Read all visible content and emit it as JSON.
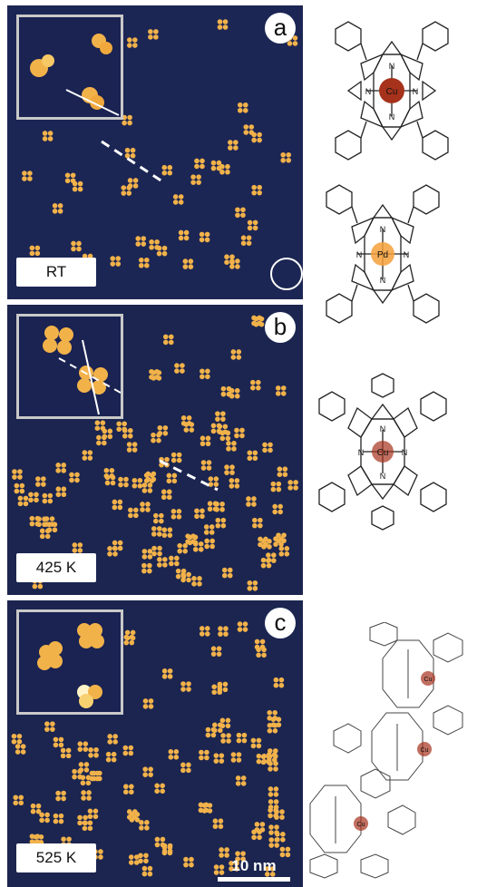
{
  "panels": [
    {
      "letter": "a",
      "temperature": "RT"
    },
    {
      "letter": "b",
      "temperature": "425 K"
    },
    {
      "letter": "c",
      "temperature": "525 K"
    }
  ],
  "scale_bar": "10 nm",
  "molecules": [
    {
      "center_atom": "Cu",
      "ring_atoms": [
        "N",
        "N",
        "N",
        "N"
      ]
    },
    {
      "center_atom": "Pd",
      "ring_atoms": [
        "N",
        "N",
        "N",
        "N"
      ]
    },
    {
      "center_atom": "Cu",
      "ring_atoms": [
        "N",
        "N",
        "N",
        "N"
      ]
    },
    {
      "center_atoms": [
        "Cu",
        "Cu",
        "Cu"
      ]
    }
  ],
  "colors": {
    "substrate": "#1b2550",
    "molecule_spot": "#f2b24a",
    "cu_atom": "#a6321c",
    "pd_atom": "#f5a03a"
  }
}
